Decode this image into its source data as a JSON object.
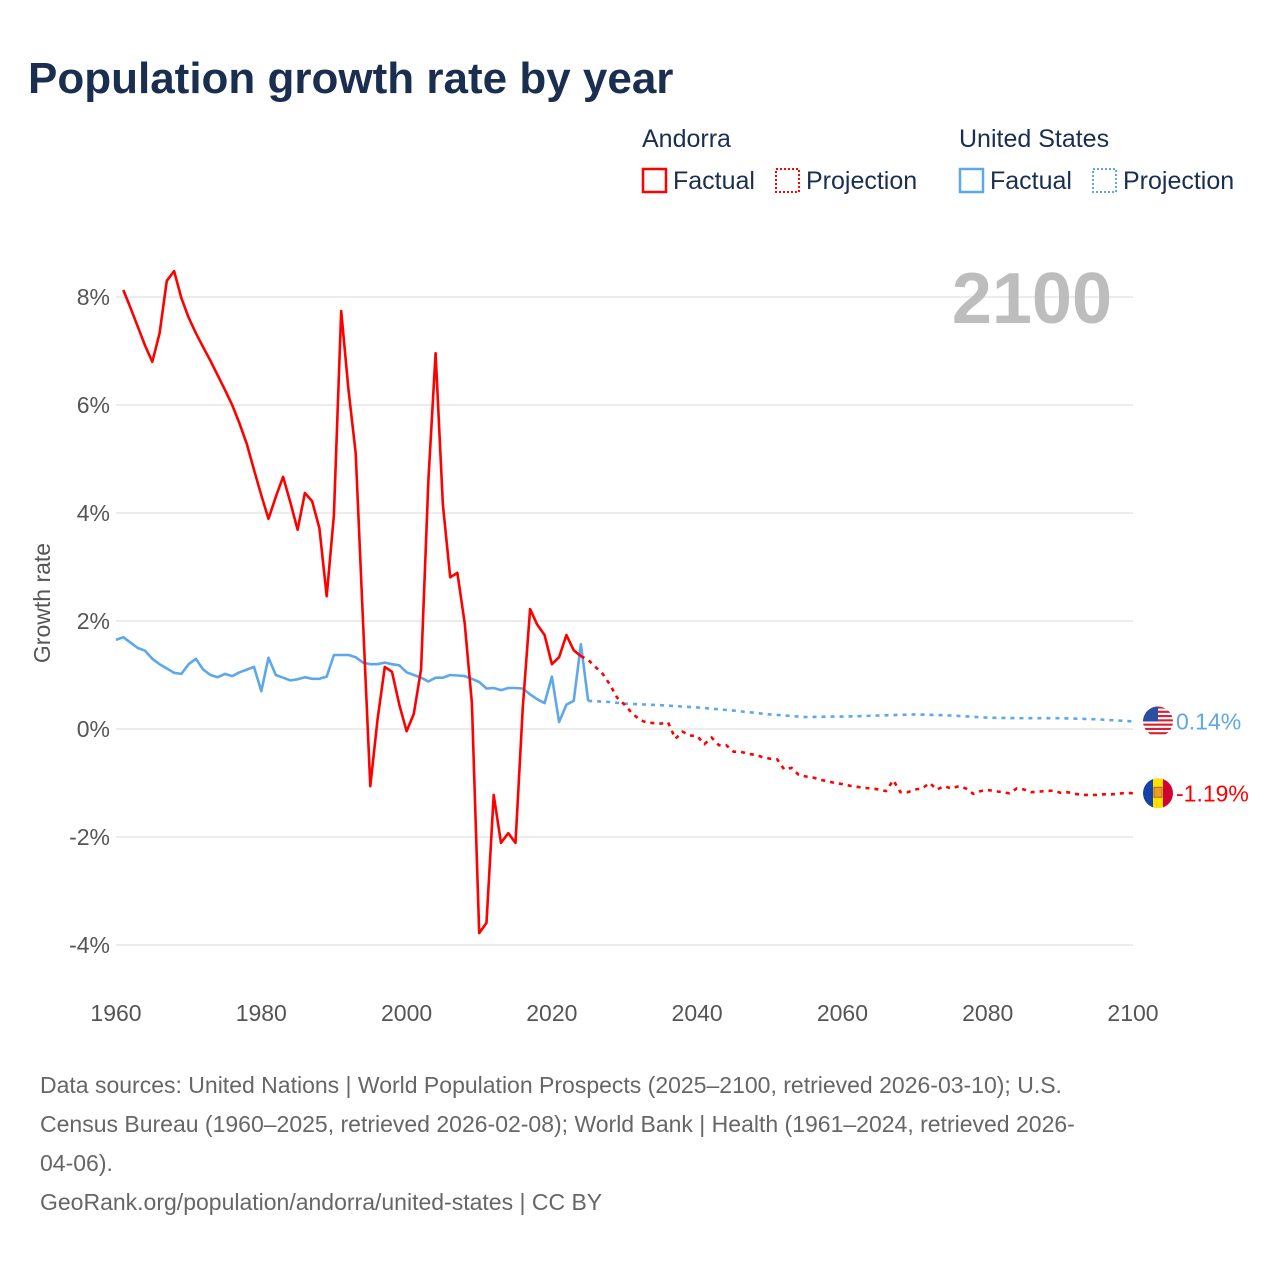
{
  "chart_data": {
    "type": "line",
    "title": "Population growth rate by year",
    "ylabel": "Growth rate",
    "xlabel": "",
    "xlim": [
      1960,
      2100
    ],
    "ylim": [
      -4.6,
      8.8
    ],
    "xticks": [
      1960,
      1980,
      2000,
      2020,
      2040,
      2060,
      2080,
      2100
    ],
    "xtick_labels": [
      "1960",
      "1980",
      "2000",
      "2020",
      "2040",
      "2060",
      "2080",
      "2100"
    ],
    "yticks": [
      8,
      6,
      4,
      2,
      0,
      -2,
      -4
    ],
    "ytick_labels": [
      "8%",
      "6%",
      "4%",
      "2%",
      "0%",
      "-2%",
      "-4%"
    ],
    "grid": true,
    "year_label": "2100",
    "legend": {
      "placement": "top-right",
      "groups": [
        {
          "name": "Andorra",
          "factual": "Factual",
          "projection": "Projection",
          "color": "#ff0000"
        },
        {
          "name": "United States",
          "factual": "Factual",
          "projection": "Projection",
          "color": "#5ea8ea"
        }
      ]
    },
    "series": [
      {
        "name": "Andorra",
        "color": "#ff0000",
        "end_label": "-1.19%",
        "flag": "andorra-flag",
        "factual": [
          [
            1961,
            8.13
          ],
          [
            1962,
            7.8
          ],
          [
            1963,
            7.45
          ],
          [
            1964,
            7.1
          ],
          [
            1965,
            6.8
          ],
          [
            1966,
            7.33
          ],
          [
            1967,
            8.3
          ],
          [
            1968,
            8.48
          ],
          [
            1969,
            7.98
          ],
          [
            1970,
            7.62
          ],
          [
            1971,
            7.33
          ],
          [
            1972,
            7.07
          ],
          [
            1973,
            6.82
          ],
          [
            1974,
            6.55
          ],
          [
            1975,
            6.28
          ],
          [
            1976,
            6.0
          ],
          [
            1977,
            5.66
          ],
          [
            1978,
            5.28
          ],
          [
            1979,
            4.8
          ],
          [
            1980,
            4.33
          ],
          [
            1981,
            3.89
          ],
          [
            1982,
            4.3
          ],
          [
            1983,
            4.67
          ],
          [
            1984,
            4.2
          ],
          [
            1985,
            3.69
          ],
          [
            1986,
            4.37
          ],
          [
            1987,
            4.22
          ],
          [
            1988,
            3.72
          ],
          [
            1989,
            2.46
          ],
          [
            1990,
            3.96
          ],
          [
            1991,
            7.74
          ],
          [
            1992,
            6.28
          ],
          [
            1993,
            5.11
          ],
          [
            1994,
            2.0
          ],
          [
            1995,
            -1.06
          ],
          [
            1996,
            0.17
          ],
          [
            1997,
            1.15
          ],
          [
            1998,
            1.06
          ],
          [
            1999,
            0.45
          ],
          [
            2000,
            -0.04
          ],
          [
            2001,
            0.28
          ],
          [
            2002,
            1.11
          ],
          [
            2003,
            4.61
          ],
          [
            2004,
            6.96
          ],
          [
            2005,
            4.15
          ],
          [
            2006,
            2.81
          ],
          [
            2007,
            2.89
          ],
          [
            2008,
            1.96
          ],
          [
            2009,
            0.48
          ],
          [
            2010,
            -3.78
          ],
          [
            2011,
            -3.59
          ],
          [
            2012,
            -1.22
          ],
          [
            2013,
            -2.11
          ],
          [
            2014,
            -1.93
          ],
          [
            2015,
            -2.11
          ],
          [
            2016,
            0.4
          ],
          [
            2017,
            2.22
          ],
          [
            2018,
            1.93
          ],
          [
            2019,
            1.74
          ],
          [
            2020,
            1.2
          ],
          [
            2021,
            1.33
          ],
          [
            2022,
            1.74
          ],
          [
            2023,
            1.46
          ],
          [
            2024,
            1.35
          ]
        ],
        "projection": [
          [
            2024,
            1.35
          ],
          [
            2025,
            1.28
          ],
          [
            2026,
            1.15
          ],
          [
            2027,
            1.02
          ],
          [
            2028,
            0.82
          ],
          [
            2029,
            0.58
          ],
          [
            2030,
            0.45
          ],
          [
            2031,
            0.3
          ],
          [
            2032,
            0.18
          ],
          [
            2033,
            0.12
          ],
          [
            2034,
            0.11
          ],
          [
            2035,
            0.1
          ],
          [
            2036,
            0.12
          ],
          [
            2037,
            -0.18
          ],
          [
            2038,
            -0.05
          ],
          [
            2039,
            -0.12
          ],
          [
            2040,
            -0.13
          ],
          [
            2041,
            -0.28
          ],
          [
            2042,
            -0.16
          ],
          [
            2043,
            -0.3
          ],
          [
            2044,
            -0.3
          ],
          [
            2045,
            -0.42
          ],
          [
            2046,
            -0.42
          ],
          [
            2047,
            -0.46
          ],
          [
            2048,
            -0.48
          ],
          [
            2049,
            -0.52
          ],
          [
            2050,
            -0.55
          ],
          [
            2051,
            -0.56
          ],
          [
            2052,
            -0.75
          ],
          [
            2053,
            -0.72
          ],
          [
            2054,
            -0.85
          ],
          [
            2055,
            -0.88
          ],
          [
            2056,
            -0.9
          ],
          [
            2057,
            -0.94
          ],
          [
            2058,
            -0.97
          ],
          [
            2059,
            -1.0
          ],
          [
            2060,
            -1.02
          ],
          [
            2061,
            -1.05
          ],
          [
            2062,
            -1.07
          ],
          [
            2063,
            -1.09
          ],
          [
            2064,
            -1.1
          ],
          [
            2065,
            -1.12
          ],
          [
            2066,
            -1.15
          ],
          [
            2067,
            -0.95
          ],
          [
            2068,
            -1.17
          ],
          [
            2069,
            -1.17
          ],
          [
            2070,
            -1.12
          ],
          [
            2071,
            -1.1
          ],
          [
            2072,
            -1.0
          ],
          [
            2073,
            -1.12
          ],
          [
            2074,
            -1.06
          ],
          [
            2075,
            -1.1
          ],
          [
            2076,
            -1.06
          ],
          [
            2077,
            -1.1
          ],
          [
            2078,
            -1.2
          ],
          [
            2079,
            -1.15
          ],
          [
            2080,
            -1.13
          ],
          [
            2081,
            -1.15
          ],
          [
            2082,
            -1.17
          ],
          [
            2083,
            -1.19
          ],
          [
            2084,
            -1.1
          ],
          [
            2085,
            -1.12
          ],
          [
            2086,
            -1.17
          ],
          [
            2087,
            -1.16
          ],
          [
            2088,
            -1.15
          ],
          [
            2089,
            -1.14
          ],
          [
            2090,
            -1.18
          ],
          [
            2091,
            -1.17
          ],
          [
            2092,
            -1.2
          ],
          [
            2093,
            -1.22
          ],
          [
            2094,
            -1.22
          ],
          [
            2095,
            -1.22
          ],
          [
            2096,
            -1.21
          ],
          [
            2097,
            -1.21
          ],
          [
            2098,
            -1.2
          ],
          [
            2099,
            -1.18
          ],
          [
            2100,
            -1.19
          ]
        ]
      },
      {
        "name": "United States",
        "color": "#5ea8ea",
        "end_label": "0.14%",
        "flag": "us-flag",
        "factual": [
          [
            1960,
            1.65
          ],
          [
            1961,
            1.7
          ],
          [
            1962,
            1.6
          ],
          [
            1963,
            1.5
          ],
          [
            1964,
            1.45
          ],
          [
            1965,
            1.3
          ],
          [
            1966,
            1.2
          ],
          [
            1967,
            1.12
          ],
          [
            1968,
            1.04
          ],
          [
            1969,
            1.02
          ],
          [
            1970,
            1.2
          ],
          [
            1971,
            1.3
          ],
          [
            1972,
            1.1
          ],
          [
            1973,
            1.0
          ],
          [
            1974,
            0.96
          ],
          [
            1975,
            1.02
          ],
          [
            1976,
            0.98
          ],
          [
            1977,
            1.05
          ],
          [
            1978,
            1.1
          ],
          [
            1979,
            1.15
          ],
          [
            1980,
            0.7
          ],
          [
            1981,
            1.32
          ],
          [
            1982,
            1.0
          ],
          [
            1983,
            0.95
          ],
          [
            1984,
            0.9
          ],
          [
            1985,
            0.92
          ],
          [
            1986,
            0.96
          ],
          [
            1987,
            0.93
          ],
          [
            1988,
            0.93
          ],
          [
            1989,
            0.97
          ],
          [
            1990,
            1.37
          ],
          [
            1991,
            1.37
          ],
          [
            1992,
            1.37
          ],
          [
            1993,
            1.33
          ],
          [
            1994,
            1.23
          ],
          [
            1995,
            1.2
          ],
          [
            1996,
            1.2
          ],
          [
            1997,
            1.23
          ],
          [
            1998,
            1.2
          ],
          [
            1999,
            1.18
          ],
          [
            2000,
            1.05
          ],
          [
            2001,
            1.0
          ],
          [
            2002,
            0.95
          ],
          [
            2003,
            0.88
          ],
          [
            2004,
            0.95
          ],
          [
            2005,
            0.95
          ],
          [
            2006,
            1.0
          ],
          [
            2007,
            0.99
          ],
          [
            2008,
            0.98
          ],
          [
            2009,
            0.93
          ],
          [
            2010,
            0.87
          ],
          [
            2011,
            0.75
          ],
          [
            2012,
            0.76
          ],
          [
            2013,
            0.72
          ],
          [
            2014,
            0.76
          ],
          [
            2015,
            0.76
          ],
          [
            2016,
            0.75
          ],
          [
            2017,
            0.64
          ],
          [
            2018,
            0.55
          ],
          [
            2019,
            0.48
          ],
          [
            2020,
            0.97
          ],
          [
            2021,
            0.13
          ],
          [
            2022,
            0.45
          ],
          [
            2023,
            0.52
          ],
          [
            2024,
            1.57
          ],
          [
            2025,
            0.52
          ]
        ],
        "projection": [
          [
            2025,
            0.52
          ],
          [
            2028,
            0.5
          ],
          [
            2030,
            0.47
          ],
          [
            2035,
            0.44
          ],
          [
            2040,
            0.4
          ],
          [
            2045,
            0.34
          ],
          [
            2050,
            0.27
          ],
          [
            2055,
            0.22
          ],
          [
            2058,
            0.23
          ],
          [
            2060,
            0.23
          ],
          [
            2065,
            0.25
          ],
          [
            2070,
            0.27
          ],
          [
            2075,
            0.25
          ],
          [
            2080,
            0.21
          ],
          [
            2085,
            0.2
          ],
          [
            2090,
            0.2
          ],
          [
            2095,
            0.18
          ],
          [
            2100,
            0.14
          ]
        ]
      }
    ]
  },
  "footer": {
    "source_lines": [
      "Data sources: United Nations | World Population Prospects (2025–2100, retrieved 2026-03-10); U.S.",
      "Census Bureau (1960–2025, retrieved 2026-02-08); World Bank | Health (1961–2024, retrieved 2026-",
      "04-06)."
    ],
    "credit": "GeoRank.org/population/andorra/united-states | CC BY"
  }
}
